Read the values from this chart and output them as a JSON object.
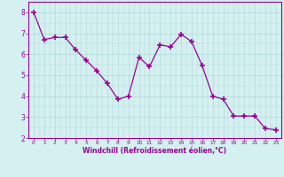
{
  "x": [
    0,
    1,
    2,
    3,
    4,
    5,
    6,
    7,
    8,
    9,
    10,
    11,
    12,
    13,
    14,
    15,
    16,
    17,
    18,
    19,
    20,
    21,
    22,
    23
  ],
  "y": [
    8.0,
    6.7,
    6.8,
    6.8,
    6.2,
    5.7,
    5.2,
    4.6,
    3.85,
    4.0,
    5.85,
    5.4,
    6.45,
    6.35,
    6.95,
    6.6,
    5.45,
    4.0,
    3.85,
    3.05,
    3.05,
    3.05,
    2.45,
    2.4
  ],
  "line_color": "#990099",
  "marker": "+",
  "marker_size": 4,
  "bg_color": "#d4f0f0",
  "grid_color": "#b0d8d8",
  "xlabel": "Windchill (Refroidissement éolien,°C)",
  "xlabel_color": "#990099",
  "tick_color": "#990099",
  "ylim": [
    2,
    8.5
  ],
  "xlim": [
    -0.5,
    23.5
  ],
  "yticks": [
    2,
    3,
    4,
    5,
    6,
    7,
    8
  ],
  "xticks": [
    0,
    1,
    2,
    3,
    4,
    5,
    6,
    7,
    8,
    9,
    10,
    11,
    12,
    13,
    14,
    15,
    16,
    17,
    18,
    19,
    20,
    21,
    22,
    23
  ]
}
